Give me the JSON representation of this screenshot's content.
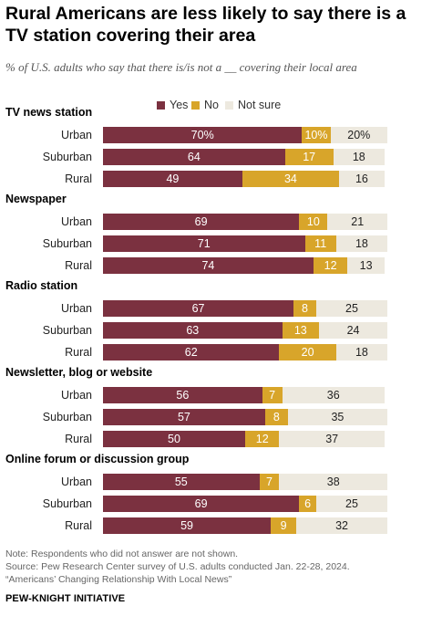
{
  "title": "Rural Americans are less likely to say there is a TV station covering their area",
  "subtitle": "% of U.S. adults who say that there is/is not a __ covering their local area",
  "legend": {
    "yes": "Yes",
    "no": "No",
    "not_sure": "Not sure"
  },
  "colors": {
    "yes": "#7b3140",
    "no": "#d8a52a",
    "not_sure": "#ede9df"
  },
  "footer": {
    "note": "Note: Respondents who did not answer are not shown.",
    "source": "Source: Pew Research Center survey of U.S. adults conducted Jan. 22-28, 2024.",
    "report": "“Americans’ Changing Relationship With Local News”",
    "brand": "PEW-KNIGHT INITIATIVE"
  },
  "chart_data": {
    "type": "bar",
    "orientation": "horizontal",
    "stacked": true,
    "series_names": [
      "Yes",
      "No",
      "Not sure"
    ],
    "groups": [
      {
        "name": "TV news station",
        "rows": [
          {
            "label": "Urban",
            "yes": 70,
            "no": 10,
            "not_sure": 20,
            "yes_text": "70%",
            "no_text": "10%",
            "not_sure_text": "20%"
          },
          {
            "label": "Suburban",
            "yes": 64,
            "no": 17,
            "not_sure": 18,
            "yes_text": "64",
            "no_text": "17",
            "not_sure_text": "18"
          },
          {
            "label": "Rural",
            "yes": 49,
            "no": 34,
            "not_sure": 16,
            "yes_text": "49",
            "no_text": "34",
            "not_sure_text": "16"
          }
        ]
      },
      {
        "name": "Newspaper",
        "rows": [
          {
            "label": "Urban",
            "yes": 69,
            "no": 10,
            "not_sure": 21,
            "yes_text": "69",
            "no_text": "10",
            "not_sure_text": "21"
          },
          {
            "label": "Suburban",
            "yes": 71,
            "no": 11,
            "not_sure": 18,
            "yes_text": "71",
            "no_text": "11",
            "not_sure_text": "18"
          },
          {
            "label": "Rural",
            "yes": 74,
            "no": 12,
            "not_sure": 13,
            "yes_text": "74",
            "no_text": "12",
            "not_sure_text": "13"
          }
        ]
      },
      {
        "name": "Radio station",
        "rows": [
          {
            "label": "Urban",
            "yes": 67,
            "no": 8,
            "not_sure": 25,
            "yes_text": "67",
            "no_text": "8",
            "not_sure_text": "25"
          },
          {
            "label": "Suburban",
            "yes": 63,
            "no": 13,
            "not_sure": 24,
            "yes_text": "63",
            "no_text": "13",
            "not_sure_text": "24"
          },
          {
            "label": "Rural",
            "yes": 62,
            "no": 20,
            "not_sure": 18,
            "yes_text": "62",
            "no_text": "20",
            "not_sure_text": "18"
          }
        ]
      },
      {
        "name": "Newsletter, blog or website",
        "rows": [
          {
            "label": "Urban",
            "yes": 56,
            "no": 7,
            "not_sure": 36,
            "yes_text": "56",
            "no_text": "7",
            "not_sure_text": "36"
          },
          {
            "label": "Suburban",
            "yes": 57,
            "no": 8,
            "not_sure": 35,
            "yes_text": "57",
            "no_text": "8",
            "not_sure_text": "35"
          },
          {
            "label": "Rural",
            "yes": 50,
            "no": 12,
            "not_sure": 37,
            "yes_text": "50",
            "no_text": "12",
            "not_sure_text": "37"
          }
        ]
      },
      {
        "name": "Online forum or discussion group",
        "rows": [
          {
            "label": "Urban",
            "yes": 55,
            "no": 7,
            "not_sure": 38,
            "yes_text": "55",
            "no_text": "7",
            "not_sure_text": "38"
          },
          {
            "label": "Suburban",
            "yes": 69,
            "no": 6,
            "not_sure": 25,
            "yes_text": "69",
            "no_text": "6",
            "not_sure_text": "25"
          },
          {
            "label": "Rural",
            "yes": 59,
            "no": 9,
            "not_sure": 32,
            "yes_text": "59",
            "no_text": "9",
            "not_sure_text": "32"
          }
        ]
      }
    ]
  }
}
